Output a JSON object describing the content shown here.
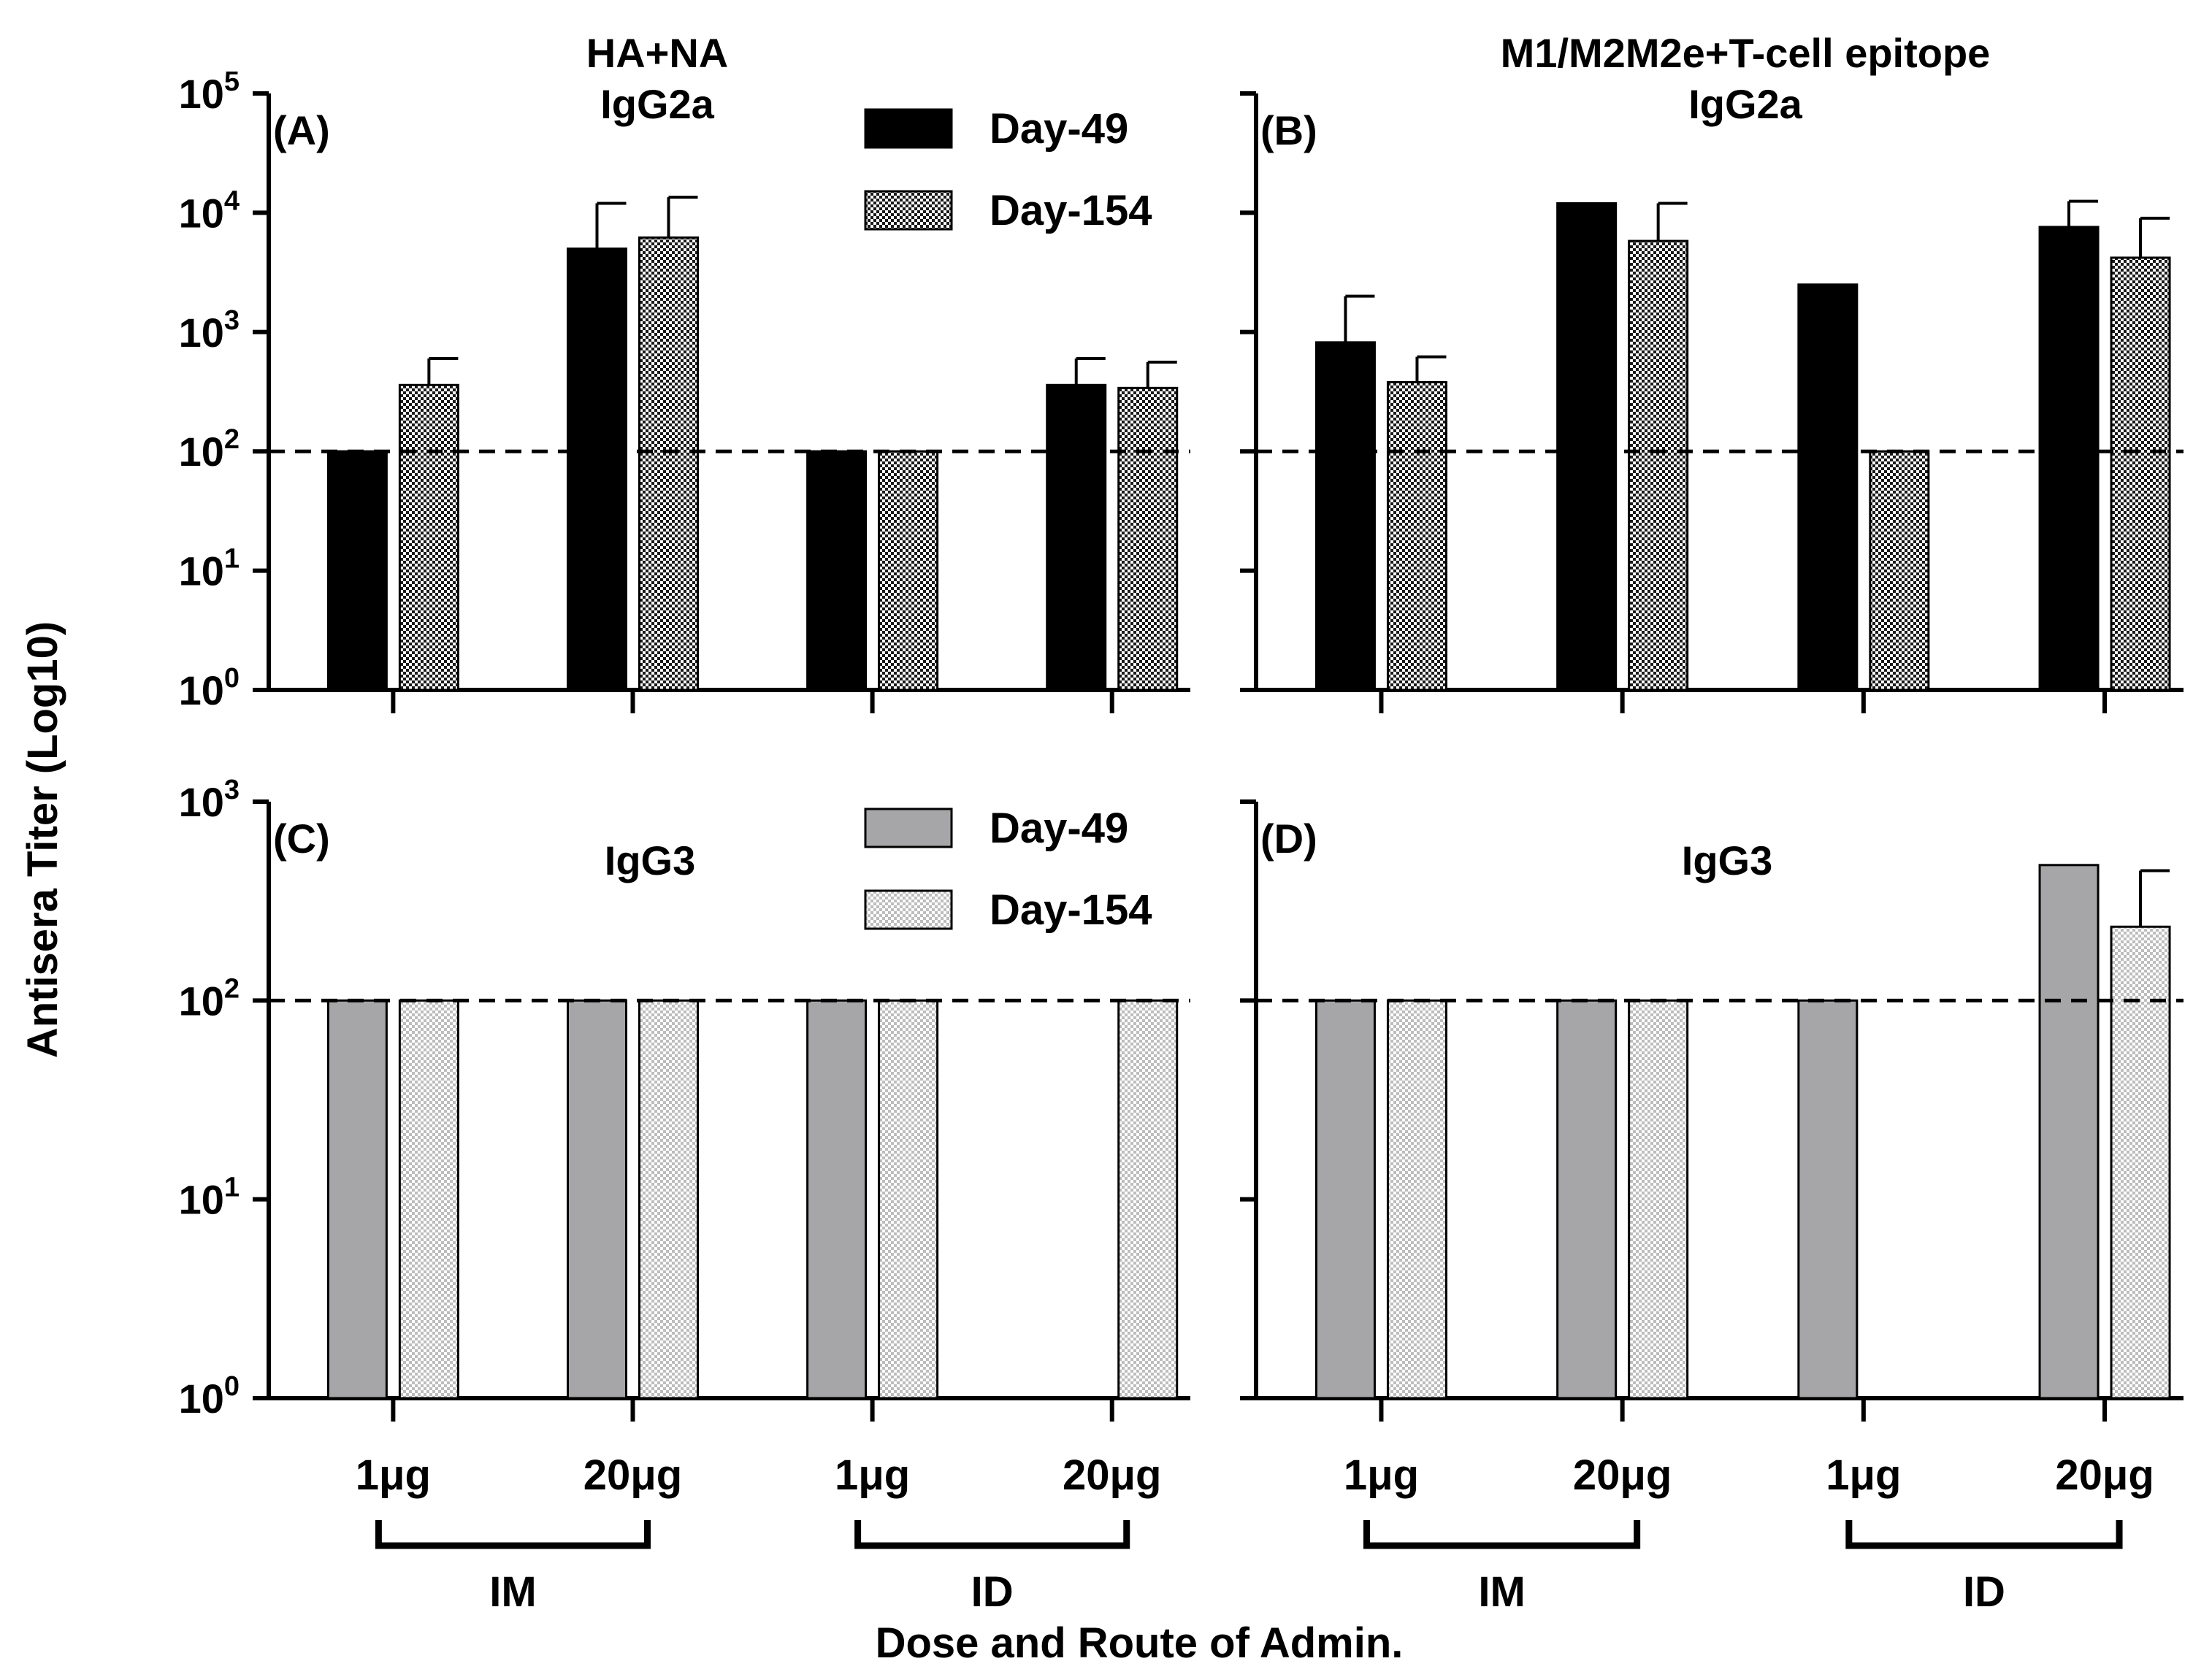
{
  "ylabel": "Antisera Titer (Log10)",
  "xlabel": "Dose and  Route of Admin.",
  "colors": {
    "ink": "#000000",
    "gray_fill": "#a6a6a8",
    "dots_light": "#bdbdbd",
    "dots_dark": "#1a1a1a",
    "bg": "#ffffff"
  },
  "chart_data": [
    {
      "panel": "A",
      "label": "(A)",
      "type": "bar",
      "scale": "log10",
      "title_lines": [
        "HA+NA",
        "IgG2a"
      ],
      "ylim": [
        1,
        100000
      ],
      "y_ticks": [
        {
          "value": 1,
          "base": "10",
          "exp": "0"
        },
        {
          "value": 10,
          "base": "10",
          "exp": "1"
        },
        {
          "value": 100,
          "base": "10",
          "exp": "2"
        },
        {
          "value": 1000,
          "base": "10",
          "exp": "3"
        },
        {
          "value": 10000,
          "base": "10",
          "exp": "4"
        },
        {
          "value": 100000,
          "base": "10",
          "exp": "5"
        }
      ],
      "show_tick_labels": true,
      "threshold": 100,
      "categories": [
        "1μg",
        "20μg",
        "1μg",
        "20μg"
      ],
      "groups": [
        "IM",
        "ID"
      ],
      "show_x_labels": false,
      "legend": {
        "position": "top-right",
        "entries": [
          "Day-49",
          "Day-154"
        ]
      },
      "style": "black",
      "series": [
        {
          "name": "Day-49",
          "values": [
            100,
            5000,
            100,
            360
          ],
          "errors": [
            null,
            12000,
            null,
            600
          ]
        },
        {
          "name": "Day-154",
          "values": [
            360,
            6200,
            100,
            340
          ],
          "errors": [
            600,
            13500,
            null,
            560
          ]
        }
      ]
    },
    {
      "panel": "B",
      "label": "(B)",
      "type": "bar",
      "scale": "log10",
      "title_lines": [
        "M1/M2M2e+T-cell epitope",
        "IgG2a"
      ],
      "ylim": [
        1,
        100000
      ],
      "y_ticks": [
        {
          "value": 1,
          "base": "10",
          "exp": "0"
        },
        {
          "value": 10,
          "base": "10",
          "exp": "1"
        },
        {
          "value": 100,
          "base": "10",
          "exp": "2"
        },
        {
          "value": 1000,
          "base": "10",
          "exp": "3"
        },
        {
          "value": 10000,
          "base": "10",
          "exp": "4"
        },
        {
          "value": 100000,
          "base": "10",
          "exp": "5"
        }
      ],
      "show_tick_labels": false,
      "threshold": 100,
      "categories": [
        "1μg",
        "20μg",
        "1μg",
        "20μg"
      ],
      "groups": [
        "IM",
        "ID"
      ],
      "show_x_labels": false,
      "legend": null,
      "style": "black",
      "series": [
        {
          "name": "Day-49",
          "values": [
            820,
            12000,
            2500,
            7600
          ],
          "errors": [
            2000,
            null,
            null,
            12500
          ]
        },
        {
          "name": "Day-154",
          "values": [
            380,
            5800,
            100,
            4200
          ],
          "errors": [
            620,
            12000,
            null,
            9000
          ]
        }
      ]
    },
    {
      "panel": "C",
      "label": "(C)",
      "type": "bar",
      "scale": "log10",
      "title_lines": [
        "IgG3"
      ],
      "ylim": [
        1,
        1000
      ],
      "y_ticks": [
        {
          "value": 1,
          "base": "10",
          "exp": "0"
        },
        {
          "value": 10,
          "base": "10",
          "exp": "1"
        },
        {
          "value": 100,
          "base": "10",
          "exp": "2"
        },
        {
          "value": 1000,
          "base": "10",
          "exp": "3"
        }
      ],
      "show_tick_labels": true,
      "threshold": 100,
      "categories": [
        "1μg",
        "20μg",
        "1μg",
        "20μg"
      ],
      "groups": [
        "IM",
        "ID"
      ],
      "show_x_labels": true,
      "legend": {
        "position": "top-right",
        "entries": [
          "Day-49",
          "Day-154"
        ]
      },
      "style": "gray",
      "series": [
        {
          "name": "Day-49",
          "values": [
            100,
            100,
            100,
            null
          ],
          "errors": [
            null,
            null,
            null,
            null
          ]
        },
        {
          "name": "Day-154",
          "values": [
            100,
            100,
            100,
            100
          ],
          "errors": [
            null,
            null,
            null,
            null
          ]
        }
      ]
    },
    {
      "panel": "D",
      "label": "(D)",
      "type": "bar",
      "scale": "log10",
      "title_lines": [
        "IgG3"
      ],
      "ylim": [
        1,
        1000
      ],
      "y_ticks": [
        {
          "value": 1,
          "base": "10",
          "exp": "0"
        },
        {
          "value": 10,
          "base": "10",
          "exp": "1"
        },
        {
          "value": 100,
          "base": "10",
          "exp": "2"
        },
        {
          "value": 1000,
          "base": "10",
          "exp": "3"
        }
      ],
      "show_tick_labels": false,
      "threshold": 100,
      "categories": [
        "1μg",
        "20μg",
        "1μg",
        "20μg"
      ],
      "groups": [
        "IM",
        "ID"
      ],
      "show_x_labels": true,
      "legend": null,
      "style": "gray",
      "series": [
        {
          "name": "Day-49",
          "values": [
            100,
            100,
            100,
            480
          ],
          "errors": [
            null,
            null,
            null,
            null
          ]
        },
        {
          "name": "Day-154",
          "values": [
            100,
            100,
            null,
            235
          ],
          "errors": [
            null,
            null,
            null,
            450
          ]
        }
      ]
    }
  ]
}
